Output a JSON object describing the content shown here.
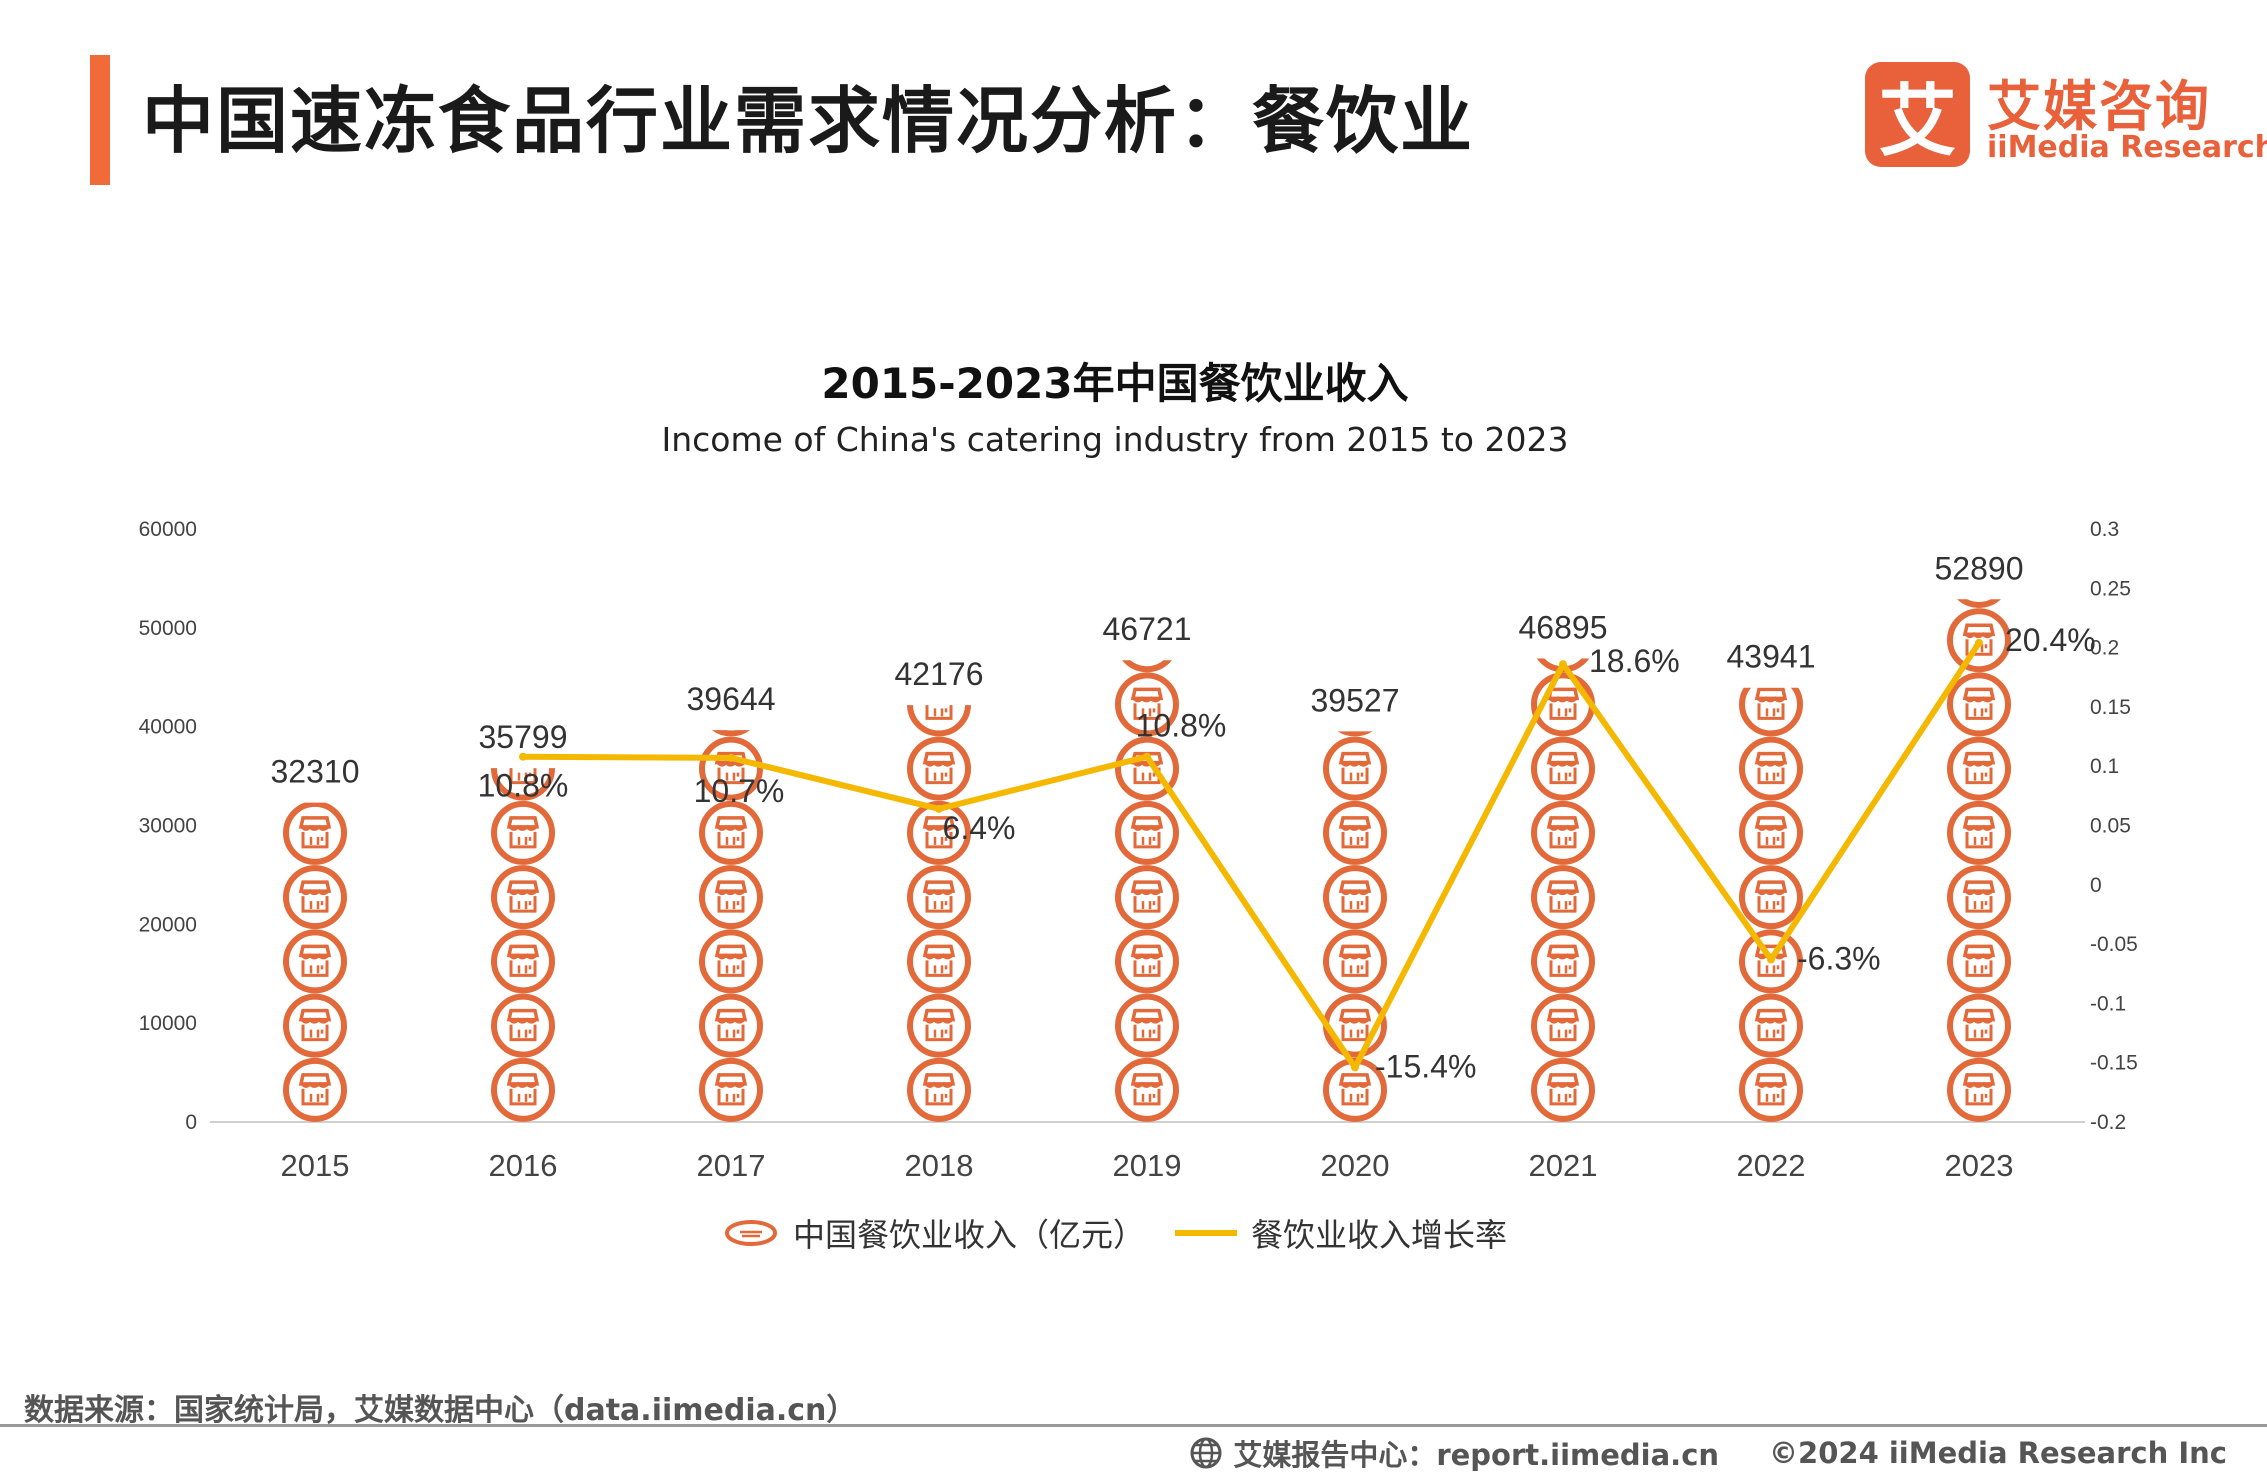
{
  "page": {
    "title": "中国速冻食品行业需求情况分析：餐饮业",
    "source": "数据来源：国家统计局，艾媒数据中心（data.iimedia.cn）",
    "footer_report": "艾媒报告中心：report.iimedia.cn",
    "footer_copyright": "©2024  iiMedia Research  Inc"
  },
  "logo": {
    "mark": "艾",
    "cn": "艾媒咨询",
    "en": "iiMedia Research"
  },
  "colors": {
    "accent": "#f26a3a",
    "icon": "#e2693a",
    "line": "#f5b800"
  },
  "chart_data": {
    "type": "pictorial-bar+line",
    "title": "2015-2023年中国餐饮业收入",
    "subtitle": "Income of China's catering industry from 2015 to 2023",
    "categories": [
      "2015",
      "2016",
      "2017",
      "2018",
      "2019",
      "2020",
      "2021",
      "2022",
      "2023"
    ],
    "series": [
      {
        "name": "中国餐饮业收入（亿元）",
        "axis": "left",
        "type": "pictorial-bar",
        "values": [
          32310,
          35799,
          39644,
          42176,
          46721,
          39527,
          46895,
          43941,
          52890
        ],
        "labels": [
          "32310",
          "35799",
          "39644",
          "42176",
          "46721",
          "39527",
          "46895",
          "43941",
          "52890"
        ]
      },
      {
        "name": "餐饮业收入增长率",
        "axis": "right",
        "type": "line",
        "values": [
          null,
          0.108,
          0.107,
          0.064,
          0.108,
          -0.154,
          0.186,
          -0.063,
          0.204
        ],
        "labels": [
          "",
          "10.8%",
          "10.7%",
          "6.4%",
          "10.8%",
          "-15.4%",
          "18.6%",
          "-6.3%",
          "20.4%"
        ]
      }
    ],
    "y_left": {
      "min": 0,
      "max": 60000,
      "ticks": [
        "0",
        "10000",
        "20000",
        "30000",
        "40000",
        "50000",
        "60000"
      ]
    },
    "y_right": {
      "min": -0.2,
      "max": 0.3,
      "ticks": [
        "-0.2",
        "-0.15",
        "-0.1",
        "-0.05",
        "0",
        "0.05",
        "0.1",
        "0.15",
        "0.2",
        "0.25",
        "0.3"
      ]
    },
    "icon_unit": 6500,
    "legend": "bottom-center"
  }
}
